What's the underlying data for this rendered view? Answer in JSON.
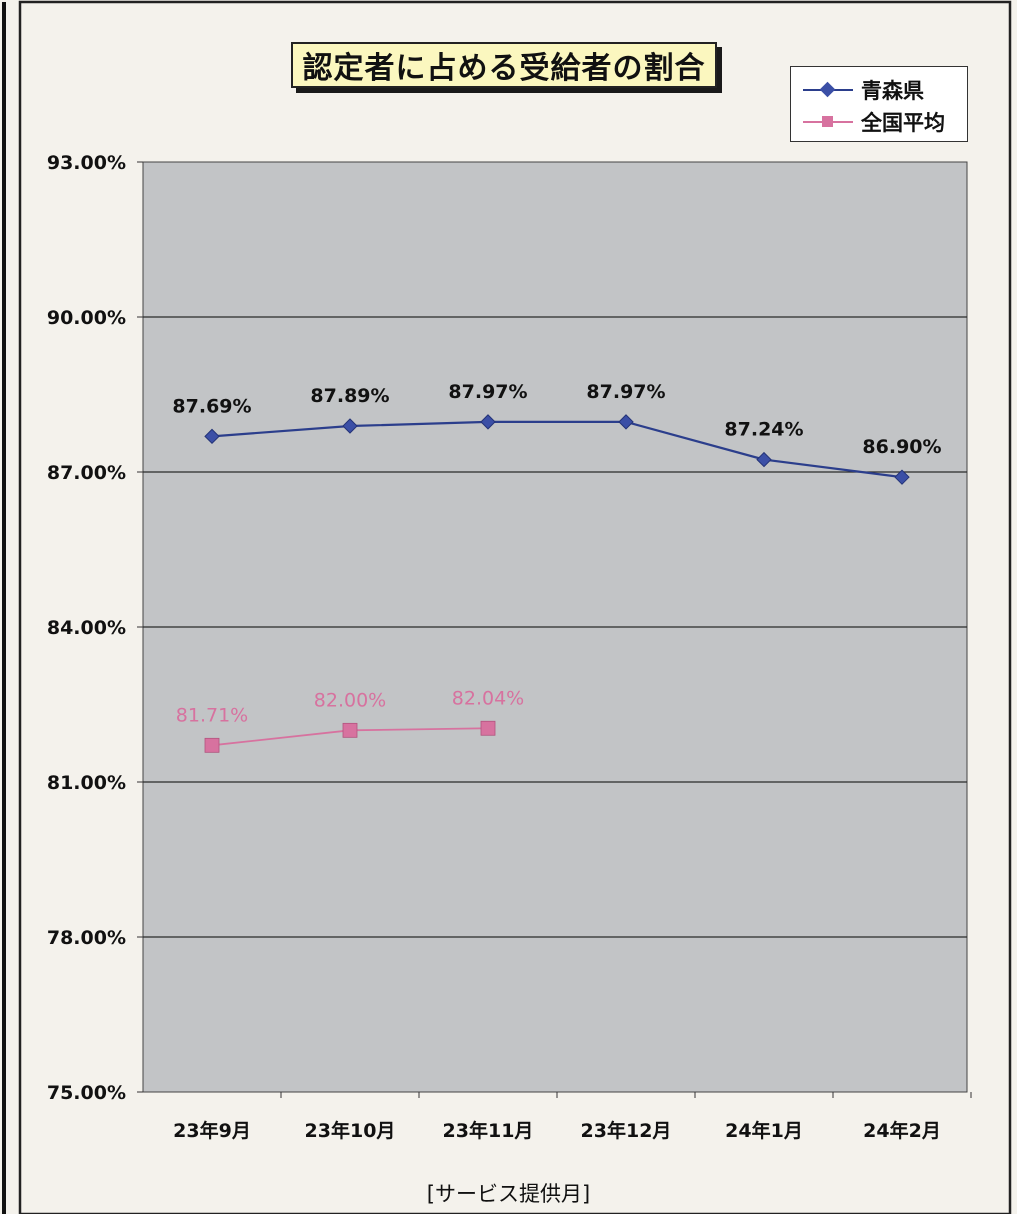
{
  "colors": {
    "page_bg": "#f4f2ec",
    "plot_bg": "#c2c4c6",
    "title_bg": "#fbf7bf",
    "aomori": "#2b3e8c",
    "national": "#d7729f",
    "gridline": "#2a2a2a"
  },
  "chart_data": {
    "type": "line",
    "title": "認定者に占める受給者の割合",
    "xlabel": "[サービス提供月]",
    "ylabel": "",
    "categories": [
      "23年9月",
      "23年10月",
      "23年11月",
      "23年12月",
      "24年1月",
      "24年2月"
    ],
    "ylim": [
      75.0,
      93.0
    ],
    "yticks": [
      "93.00%",
      "90.00%",
      "87.00%",
      "84.00%",
      "81.00%",
      "78.00%",
      "75.00%"
    ],
    "ytick_values": [
      93,
      90,
      87,
      84,
      81,
      78,
      75
    ],
    "grid": true,
    "legend_position": "top-right",
    "series": [
      {
        "name": "青森県",
        "color": "#2b3e8c",
        "marker": "diamond",
        "values": [
          87.69,
          87.89,
          87.97,
          87.97,
          87.24,
          86.9
        ],
        "labels": [
          "87.69%",
          "87.89%",
          "87.97%",
          "87.97%",
          "87.24%",
          "86.90%"
        ]
      },
      {
        "name": "全国平均",
        "color": "#d7729f",
        "marker": "square",
        "values": [
          81.71,
          82.0,
          82.04,
          null,
          null,
          null
        ],
        "labels": [
          "81.71%",
          "82.00%",
          "82.04%",
          null,
          null,
          null
        ]
      }
    ]
  }
}
